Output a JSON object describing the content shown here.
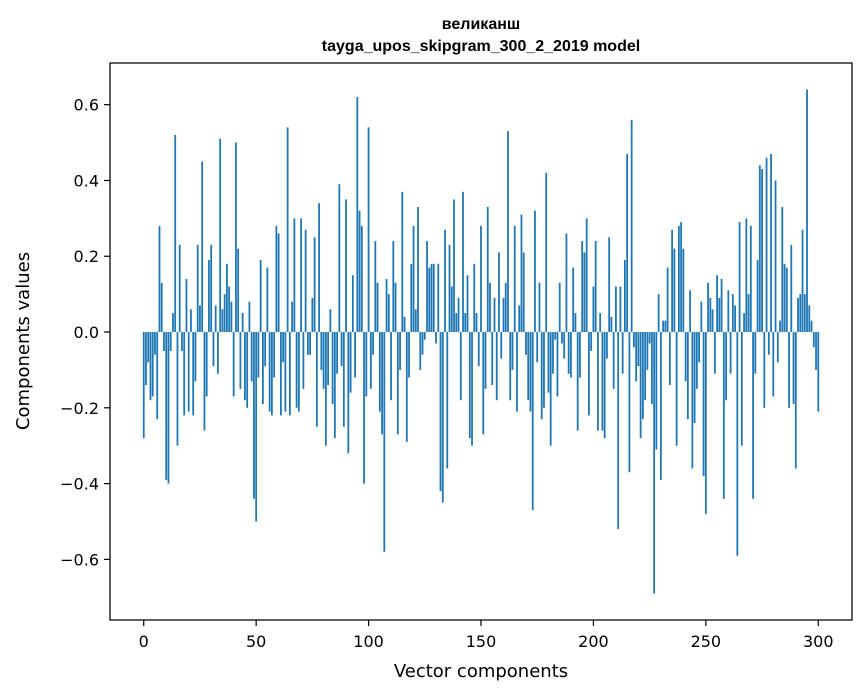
{
  "chart_data": {
    "type": "bar",
    "title": [
      "великанш",
      "tayga_upos_skipgram_300_2_2019 model"
    ],
    "xlabel": "Vector components",
    "ylabel": "Components values",
    "xlim": [
      -15,
      315
    ],
    "ylim": [
      -0.76,
      0.71
    ],
    "x_ticks": [
      0,
      50,
      100,
      150,
      200,
      250,
      300
    ],
    "x_tick_labels": [
      "0",
      "50",
      "100",
      "150",
      "200",
      "250",
      "300"
    ],
    "y_ticks": [
      -0.6,
      -0.4,
      -0.2,
      0.0,
      0.2,
      0.4,
      0.6
    ],
    "y_tick_labels": [
      "−0.6",
      "−0.4",
      "−0.2",
      "0.0",
      "0.2",
      "0.4",
      "0.6"
    ],
    "bar_color": "#1f77b4",
    "grid": false,
    "legend": "none",
    "series": [
      {
        "values": [
          -0.28,
          -0.14,
          -0.08,
          -0.18,
          -0.17,
          -0.06,
          -0.23,
          0.28,
          0.13,
          -0.05,
          -0.39,
          -0.4,
          -0.05,
          0.05,
          0.52,
          -0.3,
          0.23,
          -0.05,
          -0.22,
          0.14,
          -0.21,
          0.06,
          -0.22,
          -0.13,
          0.23,
          0.07,
          0.45,
          -0.26,
          -0.17,
          0.19,
          0.23,
          -0.09,
          0.07,
          -0.11,
          0.51,
          0.06,
          0.1,
          0.18,
          0.12,
          0.08,
          -0.17,
          0.5,
          0.22,
          -0.15,
          0.05,
          -0.18,
          -0.2,
          0.08,
          -0.13,
          -0.44,
          -0.5,
          -0.12,
          0.19,
          -0.19,
          -0.09,
          0.17,
          -0.21,
          -0.22,
          -0.12,
          0.28,
          0.26,
          -0.22,
          -0.08,
          -0.21,
          0.54,
          -0.22,
          0.08,
          0.3,
          -0.2,
          -0.21,
          0.3,
          -0.15,
          0.27,
          -0.06,
          -0.06,
          0.09,
          0.25,
          -0.25,
          0.34,
          -0.1,
          -0.15,
          -0.3,
          -0.14,
          0.06,
          -0.19,
          -0.28,
          -0.11,
          0.39,
          -0.09,
          -0.25,
          0.35,
          -0.32,
          -0.16,
          0.15,
          -0.12,
          0.62,
          0.32,
          0.28,
          -0.4,
          -0.17,
          0.54,
          -0.15,
          -0.06,
          0.24,
          0.13,
          -0.21,
          -0.27,
          -0.58,
          0.14,
          0.1,
          -0.18,
          0.24,
          0.13,
          -0.27,
          -0.1,
          0.37,
          0.04,
          -0.29,
          -0.12,
          0.18,
          0.28,
          0.06,
          0.33,
          -0.1,
          -0.06,
          -0.02,
          0.24,
          0.17,
          0.18,
          0.18,
          -0.03,
          0.18,
          -0.42,
          -0.45,
          0.27,
          -0.36,
          0.23,
          0.12,
          0.35,
          0.05,
          0.09,
          -0.18,
          0.37,
          0.05,
          0.15,
          -0.28,
          -0.3,
          0.18,
          0.05,
          -0.09,
          0.28,
          -0.27,
          -0.15,
          0.33,
          0.13,
          -0.14,
          0.09,
          -0.18,
          0.21,
          -0.07,
          0.09,
          0.13,
          0.53,
          -0.18,
          -0.1,
          0.28,
          -0.21,
          0.07,
          0.31,
          0.21,
          -0.06,
          -0.18,
          -0.21,
          -0.47,
          0.32,
          -0.08,
          0.13,
          -0.23,
          -0.2,
          0.42,
          -0.16,
          -0.3,
          -0.11,
          -0.02,
          -0.17,
          0.13,
          -0.03,
          -0.07,
          0.26,
          -0.11,
          -0.12,
          0.17,
          0.05,
          -0.26,
          -0.12,
          0.24,
          0.21,
          0.3,
          -0.22,
          -0.05,
          0.12,
          0.24,
          -0.26,
          0.05,
          -0.26,
          -0.28,
          -0.07,
          0.25,
          0.04,
          -0.15,
          0.12,
          -0.52,
          0.12,
          -0.11,
          0.19,
          0.47,
          -0.37,
          0.56,
          -0.04,
          -0.13,
          -0.09,
          -0.28,
          -0.23,
          -0.18,
          -0.1,
          -0.03,
          -0.19,
          -0.69,
          -0.31,
          0.1,
          -0.39,
          0.03,
          0.03,
          0.17,
          -0.14,
          0.27,
          0.22,
          -0.3,
          0.28,
          0.29,
          0.22,
          -0.13,
          -0.23,
          0.11,
          -0.36,
          -0.24,
          -0.15,
          -0.08,
          0.08,
          -0.38,
          -0.48,
          0.13,
          0.09,
          0.06,
          -0.11,
          0.15,
          0.09,
          0.14,
          -0.44,
          -0.18,
          0.11,
          -0.11,
          0.1,
          0.07,
          -0.59,
          0.29,
          -0.3,
          0.05,
          0.3,
          0.1,
          0.28,
          -0.44,
          -0.11,
          0.19,
          0.44,
          0.43,
          -0.2,
          0.46,
          -0.06,
          0.47,
          -0.17,
          0.4,
          -0.08,
          0.03,
          0.33,
          0.18,
          0.17,
          -0.2,
          0.23,
          -0.19,
          -0.36,
          0.09,
          0.1,
          0.27,
          0.1,
          0.64,
          0.07,
          0.03,
          -0.04,
          -0.1,
          -0.21
        ]
      }
    ]
  }
}
